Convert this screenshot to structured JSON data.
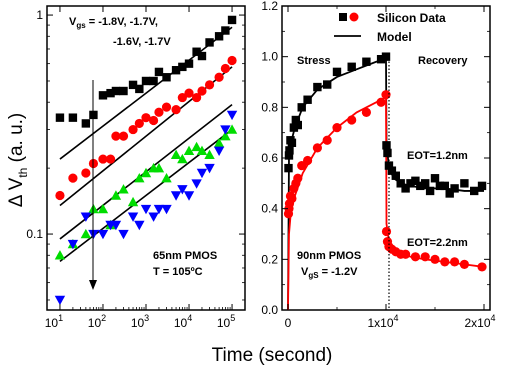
{
  "chart_data": [
    {
      "type": "scatter",
      "panel": "left",
      "xscale": "log",
      "yscale": "log",
      "xlabel": "",
      "ylabel": "Δ V_th (a. u.)",
      "xlim": [
        5,
        200000
      ],
      "ylim": [
        0.045,
        1.1
      ],
      "xticks": [
        "10^1",
        "10^2",
        "10^3",
        "10^4",
        "10^5"
      ],
      "yticks": [
        "0.1",
        "1"
      ],
      "annotations": {
        "vgs_label": "V_gs = -1.8V, -1.7V,",
        "vgs_label_line2": "-1.6V, -1.7V",
        "device": "65nm PMOS",
        "temperature": "T = 105ºC"
      },
      "series": [
        {
          "color": "#000000",
          "marker": "square",
          "x": [
            10,
            20,
            40,
            60,
            100,
            150,
            200,
            300,
            500,
            700,
            1000,
            1500,
            2000,
            3000,
            5000,
            7000,
            10000,
            15000,
            20000,
            30000,
            50000,
            70000,
            100000
          ],
          "y": [
            0.34,
            0.34,
            0.32,
            0.35,
            0.43,
            0.44,
            0.45,
            0.45,
            0.48,
            0.46,
            0.5,
            0.5,
            0.55,
            0.52,
            0.56,
            0.58,
            0.6,
            0.68,
            0.65,
            0.75,
            0.8,
            0.85,
            0.95
          ],
          "fit": {
            "x": [
              10,
              100000
            ],
            "y": [
              0.22,
              0.88
            ]
          }
        },
        {
          "color": "#ff0000",
          "marker": "circle",
          "x": [
            10,
            20,
            40,
            60,
            100,
            150,
            200,
            300,
            500,
            700,
            1000,
            1500,
            2000,
            3000,
            5000,
            7000,
            10000,
            15000,
            20000,
            30000,
            50000,
            70000,
            100000
          ],
          "y": [
            0.15,
            0.18,
            0.19,
            0.21,
            0.22,
            0.22,
            0.28,
            0.28,
            0.3,
            0.32,
            0.34,
            0.33,
            0.36,
            0.38,
            0.37,
            0.42,
            0.44,
            0.42,
            0.45,
            0.48,
            0.52,
            0.57,
            0.62
          ],
          "fit": {
            "x": [
              10,
              100000
            ],
            "y": [
              0.135,
              0.58
            ]
          }
        },
        {
          "color": "#00dd00",
          "marker": "triangle-up",
          "x": [
            10,
            20,
            40,
            60,
            100,
            150,
            200,
            300,
            500,
            700,
            1000,
            1500,
            2000,
            3000,
            5000,
            7000,
            10000,
            15000,
            20000,
            30000,
            50000,
            70000,
            100000
          ],
          "y": [
            0.08,
            0.09,
            0.1,
            0.13,
            0.13,
            0.11,
            0.15,
            0.16,
            0.14,
            0.18,
            0.19,
            0.2,
            0.2,
            0.18,
            0.23,
            0.22,
            0.24,
            0.25,
            0.24,
            0.23,
            0.26,
            0.28,
            0.3
          ],
          "fit": {
            "x": [
              10,
              100000
            ],
            "y": [
              0.095,
              0.39
            ]
          }
        },
        {
          "color": "#0000ff",
          "marker": "triangle-down",
          "x": [
            10,
            20,
            40,
            60,
            100,
            150,
            200,
            300,
            500,
            700,
            1000,
            1500,
            2000,
            3000,
            5000,
            7000,
            10000,
            15000,
            20000,
            30000,
            50000,
            70000,
            100000
          ],
          "y": [
            0.05,
            0.09,
            0.12,
            0.1,
            0.1,
            0.11,
            0.11,
            0.1,
            0.12,
            0.11,
            0.13,
            0.12,
            0.13,
            0.13,
            0.15,
            0.16,
            0.15,
            0.17,
            0.19,
            0.2,
            0.24,
            0.3,
            0.35
          ],
          "fit": {
            "x": [
              10,
              100000
            ],
            "y": [
              0.075,
              0.3
            ]
          }
        }
      ]
    },
    {
      "type": "scatter",
      "panel": "right",
      "xlabel": "Time (second)",
      "ylabel": "",
      "xlim": [
        0,
        20000
      ],
      "ylim": [
        0.0,
        1.2
      ],
      "xticks": [
        "0",
        "1x10^4",
        "2x10^4"
      ],
      "yticks": [
        "0.0",
        "0.2",
        "0.4",
        "0.6",
        "0.8",
        "1.0",
        "1.2"
      ],
      "legend": {
        "placement": "top-right",
        "entries": [
          "Silicon Data",
          "Model"
        ]
      },
      "annotations": {
        "stress": "Stress",
        "recovery": "Recovery",
        "eot1": "EOT=1.2nm",
        "eot2": "EOT=2.2nm",
        "device": "90nm PMOS",
        "vgs": "V_gS = -1.2V"
      },
      "series": [
        {
          "name": "Silicon Data",
          "color": "#000000",
          "marker": "square",
          "label": "EOT=1.2nm",
          "x": [
            50,
            100,
            150,
            250,
            400,
            600,
            800,
            1000,
            1400,
            2000,
            3000,
            4000,
            5000,
            6500,
            8000,
            9500,
            10000,
            10050,
            10150,
            10300,
            10600,
            11000,
            11500,
            12000,
            12500,
            13000,
            13500,
            14000,
            14500,
            15000,
            15500,
            16000,
            16500,
            17000,
            18000,
            19000,
            19800
          ],
          "y": [
            0.56,
            0.61,
            0.63,
            0.67,
            0.66,
            0.72,
            0.75,
            0.73,
            0.8,
            0.83,
            0.88,
            0.89,
            0.94,
            0.96,
            0.98,
            0.99,
            1.0,
            0.65,
            0.62,
            0.57,
            0.55,
            0.53,
            0.5,
            0.48,
            0.5,
            0.51,
            0.49,
            0.5,
            0.47,
            0.52,
            0.49,
            0.49,
            0.46,
            0.48,
            0.5,
            0.47,
            0.49
          ]
        },
        {
          "name": "Silicon Data",
          "color": "#ff0000",
          "marker": "circle",
          "label": "EOT=2.2nm",
          "x": [
            50,
            100,
            150,
            250,
            400,
            600,
            800,
            1000,
            1400,
            2000,
            3000,
            4000,
            5000,
            6500,
            8000,
            9500,
            10000,
            10050,
            10150,
            10300,
            10600,
            11000,
            11500,
            12000,
            13000,
            14000,
            15000,
            16000,
            17000,
            18000,
            19800
          ],
          "y": [
            0.38,
            0.4,
            0.42,
            0.45,
            0.44,
            0.48,
            0.5,
            0.52,
            0.57,
            0.59,
            0.64,
            0.67,
            0.72,
            0.75,
            0.78,
            0.82,
            0.85,
            0.31,
            0.27,
            0.25,
            0.24,
            0.23,
            0.22,
            0.22,
            0.21,
            0.21,
            0.2,
            0.19,
            0.19,
            0.18,
            0.17
          ]
        },
        {
          "name": "Model",
          "color": "#000000",
          "marker": "none",
          "label": "model-black",
          "x": [
            0,
            100,
            300,
            700,
            1500,
            3000,
            5000,
            7000,
            9000,
            10000,
            10050,
            10300,
            10800,
            11500,
            12500,
            14000,
            16000,
            18000,
            20000
          ],
          "y": [
            0.0,
            0.6,
            0.66,
            0.72,
            0.8,
            0.87,
            0.92,
            0.95,
            0.98,
            0.99,
            0.66,
            0.56,
            0.52,
            0.5,
            0.49,
            0.48,
            0.48,
            0.47,
            0.47
          ]
        },
        {
          "name": "Model",
          "color": "#ff0000",
          "marker": "none",
          "label": "model-red",
          "x": [
            0,
            100,
            300,
            700,
            1500,
            3000,
            5000,
            7000,
            9000,
            10000,
            10050,
            10300,
            10800,
            11500,
            12500,
            14000,
            16000,
            18000,
            20000
          ],
          "y": [
            0.0,
            0.3,
            0.39,
            0.45,
            0.54,
            0.64,
            0.72,
            0.78,
            0.82,
            0.84,
            0.34,
            0.27,
            0.24,
            0.23,
            0.21,
            0.2,
            0.19,
            0.18,
            0.17
          ]
        }
      ]
    }
  ]
}
